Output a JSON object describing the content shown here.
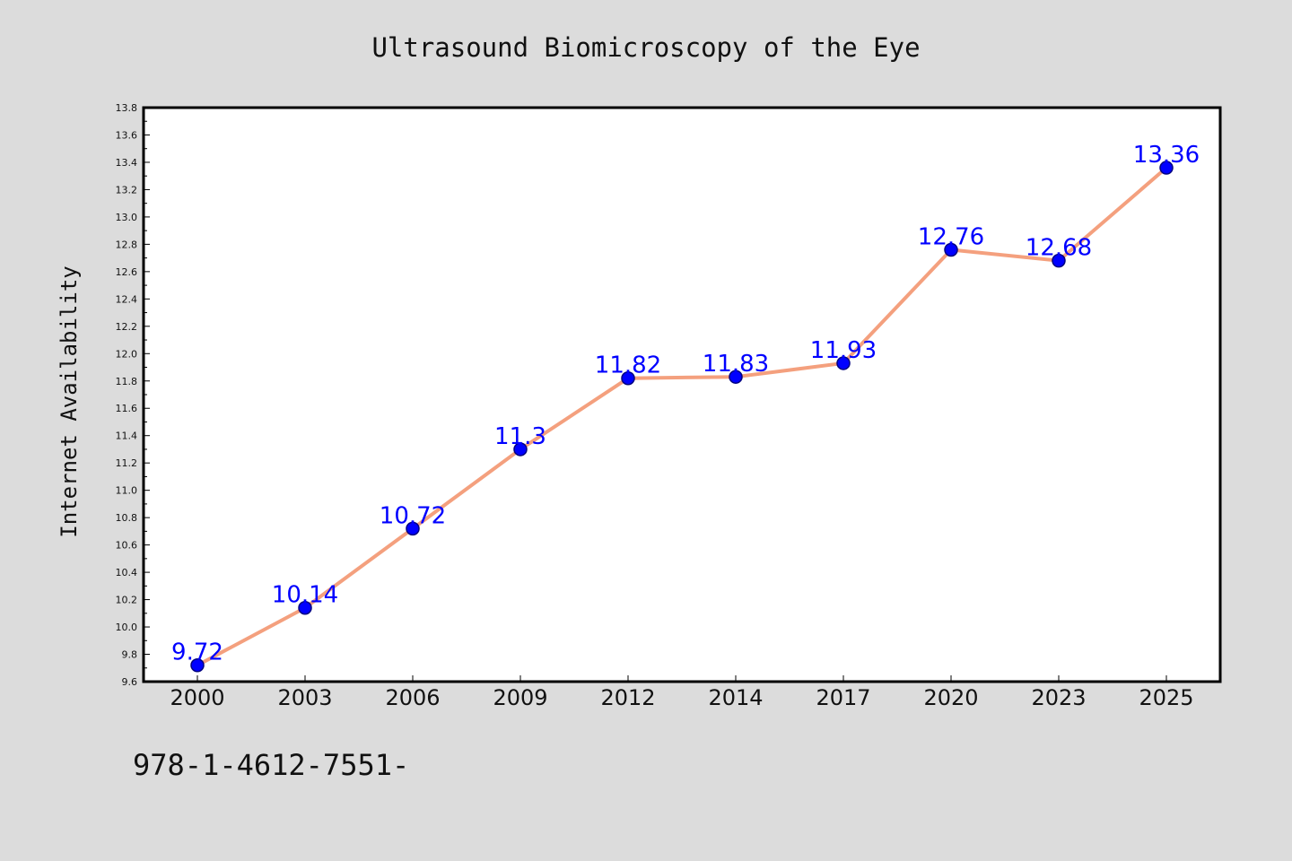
{
  "colors": {
    "figure_background": "#dcdcdc",
    "plot_background": "#ffffff",
    "line": "#f4a07e",
    "marker_fill": "#0000ff",
    "marker_edge": "#000080",
    "data_label": "#0000ff",
    "text": "#111111"
  },
  "footer": {
    "code": "978-1-4612-7551-"
  },
  "chart_data": {
    "type": "line",
    "title": "Ultrasound Biomicroscopy of the Eye",
    "xlabel": "",
    "ylabel": "Internet Availability",
    "categories": [
      "2000",
      "2003",
      "2006",
      "2009",
      "2012",
      "2014",
      "2017",
      "2020",
      "2023",
      "2025"
    ],
    "series": [
      {
        "values": [
          9.72,
          10.14,
          10.72,
          11.3,
          11.82,
          11.83,
          11.93,
          12.76,
          12.68,
          13.36
        ],
        "data_labels": [
          "9.72",
          "10.14",
          "10.72",
          "11.3",
          "11.82",
          "11.83",
          "11.93",
          "12.76",
          "12.68",
          "13.36"
        ]
      }
    ],
    "ylim": [
      9.6,
      13.8
    ],
    "y_ticks": [
      "9.6",
      "9.8",
      "10.0",
      "10.2",
      "10.4",
      "10.6",
      "10.8",
      "11.0",
      "11.2",
      "11.4",
      "11.6",
      "11.8",
      "12.0",
      "12.2",
      "12.4",
      "12.6",
      "12.8",
      "13.0",
      "13.2",
      "13.4",
      "13.6",
      "13.8"
    ],
    "grid": false,
    "legend": "none",
    "markers": "circle"
  }
}
